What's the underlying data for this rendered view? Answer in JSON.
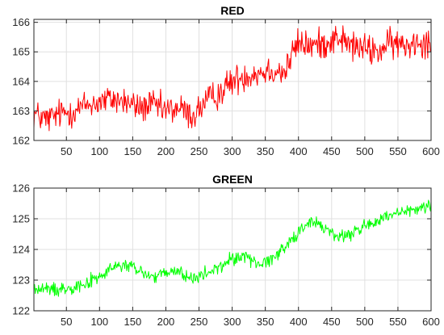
{
  "chart_data": [
    {
      "type": "line",
      "title": "RED",
      "xlabel": "",
      "ylabel": "",
      "xlim": [
        1,
        600
      ],
      "ylim": [
        162,
        166.1
      ],
      "xticks": [
        50,
        100,
        150,
        200,
        250,
        300,
        350,
        400,
        450,
        500,
        550,
        600
      ],
      "yticks": [
        162,
        163,
        164,
        165,
        166
      ],
      "grid": true,
      "color": "#ff0000",
      "anchors": {
        "x": [
          1,
          20,
          40,
          60,
          80,
          100,
          120,
          140,
          160,
          180,
          200,
          220,
          240,
          260,
          280,
          300,
          320,
          340,
          360,
          380,
          390,
          400,
          420,
          440,
          460,
          480,
          500,
          520,
          540,
          560,
          580,
          600
        ],
        "y": [
          162.9,
          162.7,
          162.9,
          163.0,
          163.2,
          163.3,
          163.4,
          163.3,
          163.1,
          163.2,
          163.0,
          163.1,
          162.8,
          163.3,
          163.6,
          164.0,
          164.2,
          164.3,
          164.4,
          164.3,
          164.9,
          165.3,
          165.2,
          165.3,
          165.5,
          165.2,
          165.1,
          165.0,
          165.3,
          165.2,
          165.4,
          165.3
        ]
      },
      "noise": 0.32
    },
    {
      "type": "line",
      "title": "GREEN",
      "xlabel": "",
      "ylabel": "",
      "xlim": [
        1,
        600
      ],
      "ylim": [
        122,
        126
      ],
      "xticks": [
        50,
        100,
        150,
        200,
        250,
        300,
        350,
        400,
        450,
        500,
        550,
        600
      ],
      "yticks": [
        122,
        123,
        124,
        125,
        126
      ],
      "grid": true,
      "color": "#00ff00",
      "anchors": {
        "x": [
          1,
          20,
          40,
          60,
          80,
          100,
          120,
          140,
          160,
          180,
          200,
          220,
          240,
          260,
          280,
          300,
          320,
          340,
          360,
          380,
          400,
          420,
          440,
          460,
          480,
          500,
          520,
          540,
          560,
          580,
          600
        ],
        "y": [
          122.7,
          122.7,
          122.7,
          122.8,
          122.9,
          123.1,
          123.4,
          123.5,
          123.3,
          123.1,
          123.2,
          123.3,
          123.0,
          123.2,
          123.4,
          123.7,
          123.8,
          123.5,
          123.7,
          124.1,
          124.6,
          124.9,
          124.7,
          124.4,
          124.5,
          124.8,
          124.9,
          125.1,
          125.2,
          125.3,
          125.5
        ]
      },
      "noise": 0.14
    }
  ]
}
